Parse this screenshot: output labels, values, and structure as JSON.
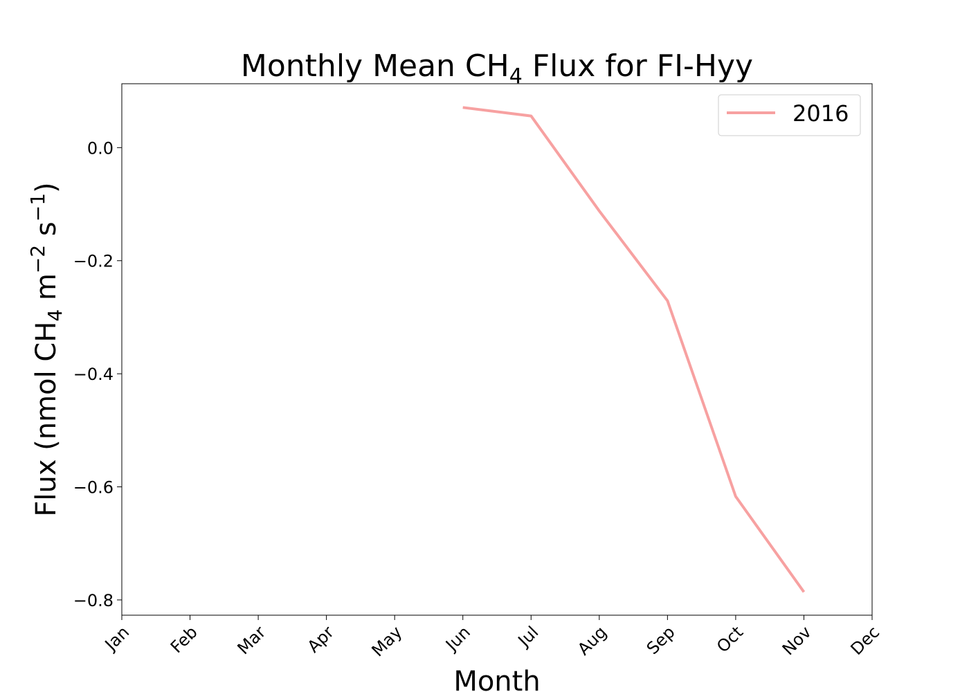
{
  "chart_data": {
    "type": "line",
    "title": {
      "prefix": "Monthly Mean CH",
      "subscript": "4",
      "suffix": " Flux for FI-Hyy"
    },
    "xlabel": "Month",
    "ylabel": {
      "part1": "Flux (nmol CH",
      "sub1": "4",
      "part2": " m",
      "sup1": "−2",
      "part3": " s",
      "sup2": "−1",
      "part4": ")"
    },
    "categories": [
      "Jan",
      "Feb",
      "Mar",
      "Apr",
      "May",
      "Jun",
      "Jul",
      "Aug",
      "Sep",
      "Oct",
      "Nov",
      "Dec"
    ],
    "yticks": [
      0.0,
      -0.2,
      -0.4,
      -0.6,
      -0.8
    ],
    "ytick_labels": [
      "0.0",
      "−0.2",
      "−0.4",
      "−0.6",
      "−0.8"
    ],
    "ylim": [
      -0.827,
      0.113
    ],
    "grid": false,
    "legend_position": "top-right",
    "series": [
      {
        "name": "2016",
        "color": "#f7a1a1",
        "values": [
          null,
          null,
          null,
          null,
          null,
          0.071,
          0.056,
          -0.112,
          -0.271,
          -0.617,
          -0.786,
          null
        ]
      }
    ]
  }
}
